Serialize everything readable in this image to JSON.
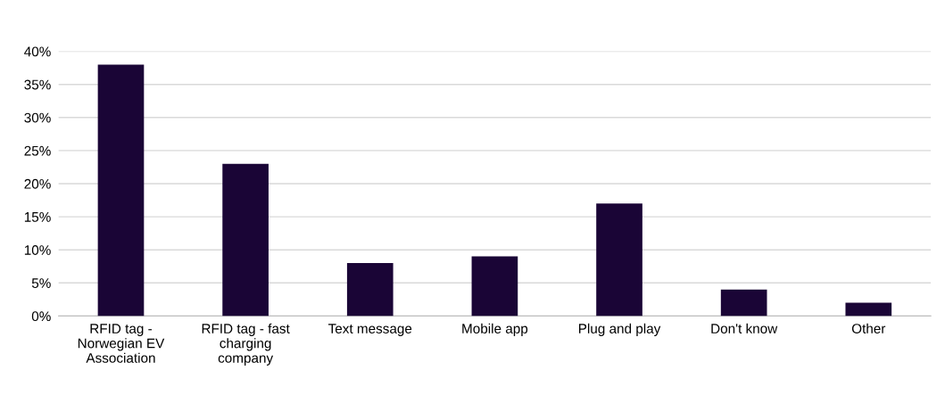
{
  "chart_data": {
    "type": "bar",
    "categories": [
      "RFID tag -\nNorwegian EV\nAssociation",
      "RFID tag - fast\ncharging\ncompany",
      "Text message",
      "Mobile app",
      "Plug and play",
      "Don't know",
      "Other"
    ],
    "values": [
      38,
      23,
      8,
      9,
      17,
      4,
      2
    ],
    "color": "#1a0536",
    "ylim": [
      0,
      40
    ],
    "yticks": [
      {
        "value": 0,
        "label": "0%"
      },
      {
        "value": 5,
        "label": "5%"
      },
      {
        "value": 10,
        "label": "10%"
      },
      {
        "value": 15,
        "label": "15%"
      },
      {
        "value": 20,
        "label": "20%"
      },
      {
        "value": 25,
        "label": "25%"
      },
      {
        "value": 30,
        "label": "30%"
      },
      {
        "value": 35,
        "label": "35%"
      },
      {
        "value": 40,
        "label": "40%"
      }
    ],
    "grid": "y"
  }
}
